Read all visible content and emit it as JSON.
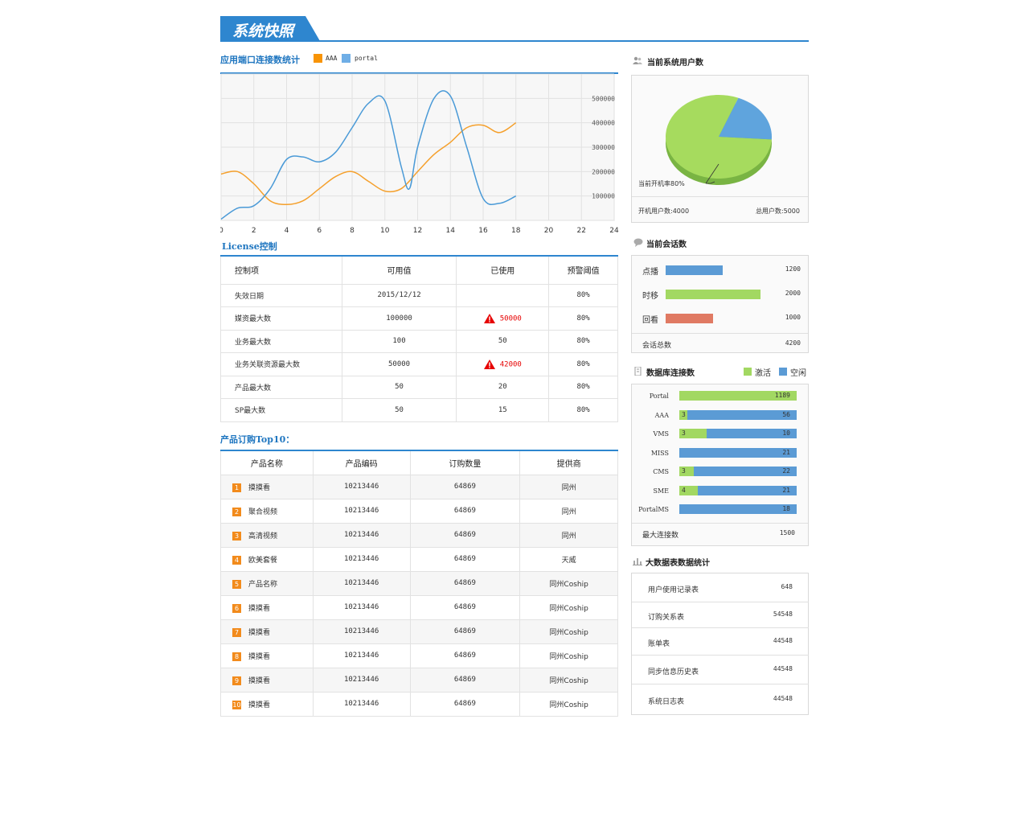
{
  "header": {
    "title": "系统快照"
  },
  "connection_chart": {
    "title": "应用端口连接数统计",
    "legend": [
      {
        "name": "AAA",
        "color": "#f89406"
      },
      {
        "name": "portal",
        "color": "#6faee6"
      }
    ]
  },
  "chart_data": {
    "type": "line",
    "x_ticks": [
      "0",
      "2",
      "4",
      "6",
      "8",
      "10",
      "12",
      "14",
      "16",
      "18",
      "20",
      "22",
      "24"
    ],
    "y_ticks": [
      "100000",
      "200000",
      "300000",
      "400000",
      "500000"
    ],
    "xlim": [
      0,
      24
    ],
    "ylim": [
      0,
      600000
    ],
    "grid": true,
    "series": [
      {
        "name": "AAA",
        "color": "#f5a02c",
        "x": [
          0,
          1,
          2,
          3,
          4,
          5,
          6,
          7,
          8,
          9,
          10,
          11,
          12,
          13,
          14,
          15,
          16,
          17,
          18
        ],
        "y": [
          190000,
          200000,
          150000,
          80000,
          65000,
          80000,
          130000,
          180000,
          200000,
          160000,
          120000,
          130000,
          200000,
          270000,
          320000,
          380000,
          390000,
          360000,
          400000
        ]
      },
      {
        "name": "portal",
        "color": "#4a9ad7",
        "x": [
          0,
          1,
          2,
          3,
          4,
          5,
          6,
          7,
          8,
          9,
          10,
          11,
          11.5,
          12,
          13,
          14,
          15,
          16,
          17,
          18
        ],
        "y": [
          5000,
          50000,
          60000,
          130000,
          250000,
          260000,
          240000,
          280000,
          380000,
          480000,
          490000,
          220000,
          130000,
          300000,
          500000,
          510000,
          300000,
          90000,
          70000,
          100000
        ]
      }
    ]
  },
  "license": {
    "title": "License控制",
    "headers": [
      "控制项",
      "可用值",
      "已使用",
      "预警阈值"
    ],
    "rows": [
      {
        "item": "失效日期",
        "available": "2015/12/12",
        "used": "",
        "warn": false,
        "threshold": "80%"
      },
      {
        "item": "媒资最大数",
        "available": "100000",
        "used": "50000",
        "warn": true,
        "threshold": "80%"
      },
      {
        "item": "业务最大数",
        "available": "100",
        "used": "50",
        "warn": false,
        "threshold": "80%"
      },
      {
        "item": "业务关联资源最大数",
        "available": "50000",
        "used": "42000",
        "warn": true,
        "threshold": "80%"
      },
      {
        "item": "产品最大数",
        "available": "50",
        "used": "20",
        "warn": false,
        "threshold": "80%"
      },
      {
        "item": "SP最大数",
        "available": "50",
        "used": "15",
        "warn": false,
        "threshold": "80%"
      }
    ]
  },
  "products": {
    "title": "产品订购Top10：",
    "headers": [
      "产品名称",
      "产品编码",
      "订购数量",
      "提供商"
    ],
    "rows": [
      {
        "rank": "1",
        "name": "摸摸看",
        "code": "10213446",
        "qty": "64869",
        "provider": "同州"
      },
      {
        "rank": "2",
        "name": "聚合视频",
        "code": "10213446",
        "qty": "64869",
        "provider": "同州"
      },
      {
        "rank": "3",
        "name": "高清视频",
        "code": "10213446",
        "qty": "64869",
        "provider": "同州"
      },
      {
        "rank": "4",
        "name": "欧美套餐",
        "code": "10213446",
        "qty": "64869",
        "provider": "天威"
      },
      {
        "rank": "5",
        "name": "产品名称",
        "code": "10213446",
        "qty": "64869",
        "provider": "同州Coship"
      },
      {
        "rank": "6",
        "name": "摸摸看",
        "code": "10213446",
        "qty": "64869",
        "provider": "同州Coship"
      },
      {
        "rank": "7",
        "name": "摸摸看",
        "code": "10213446",
        "qty": "64869",
        "provider": "同州Coship"
      },
      {
        "rank": "8",
        "name": "摸摸看",
        "code": "10213446",
        "qty": "64869",
        "provider": "同州Coship"
      },
      {
        "rank": "9",
        "name": "摸摸看",
        "code": "10213446",
        "qty": "64869",
        "provider": "同州Coship"
      },
      {
        "rank": "10",
        "name": "摸摸看",
        "code": "10213446",
        "qty": "64869",
        "provider": "同州Coship"
      }
    ]
  },
  "users_panel": {
    "title": "当前系统用户数",
    "pie_label": "当前开机率80%",
    "online_label": "开机用户数:4000",
    "total_label": "总用户数:5000",
    "online_fraction": 0.8,
    "colors": {
      "online": "#a6db5e",
      "offline": "#5fa4dd"
    }
  },
  "sessions_panel": {
    "title": "当前会话数",
    "max": 2200,
    "rows": [
      {
        "label": "点播",
        "value": 1200,
        "value_text": "1200",
        "color": "#5b9bd5"
      },
      {
        "label": "时移",
        "value": 2000,
        "value_text": "2000",
        "color": "#a2d862"
      },
      {
        "label": "回看",
        "value": 1000,
        "value_text": "1000",
        "color": "#e07a63"
      }
    ],
    "total_label": "会话总数",
    "total_value": "4200"
  },
  "db_panel": {
    "title": "数据库连接数",
    "legend_active": "激活",
    "legend_idle": "空闲",
    "colors": {
      "active": "#a2d862",
      "idle": "#5b9bd5"
    },
    "rows": [
      {
        "label": "Portal",
        "active": 1189,
        "active_text": "1189",
        "idle": 0,
        "idle_text": ""
      },
      {
        "label": "AAA",
        "active": 3,
        "active_text": "3",
        "idle": 56,
        "idle_text": "56"
      },
      {
        "label": "VMS",
        "active": 3,
        "active_text": "3",
        "idle": 10,
        "idle_text": "10"
      },
      {
        "label": "MISS",
        "active": 0,
        "active_text": "",
        "idle": 21,
        "idle_text": "21"
      },
      {
        "label": "CMS",
        "active": 3,
        "active_text": "3",
        "idle": 22,
        "idle_text": "22"
      },
      {
        "label": "SME",
        "active": 4,
        "active_text": "4",
        "idle": 21,
        "idle_text": "21"
      },
      {
        "label": "PortalMS",
        "active": 0,
        "active_text": "",
        "idle": 18,
        "idle_text": "18"
      }
    ],
    "max_label": "最大连接数",
    "max_value": "1500"
  },
  "bigdata_panel": {
    "title": "大数据表数据统计",
    "rows": [
      {
        "label": "用户使用记录表",
        "value": "648"
      },
      {
        "label": "订购关系表",
        "value": "54548"
      },
      {
        "label": "账单表",
        "value": "44548"
      },
      {
        "label": "同步信息历史表",
        "value": "44548"
      },
      {
        "label": "系统日志表",
        "value": "44548"
      }
    ]
  }
}
